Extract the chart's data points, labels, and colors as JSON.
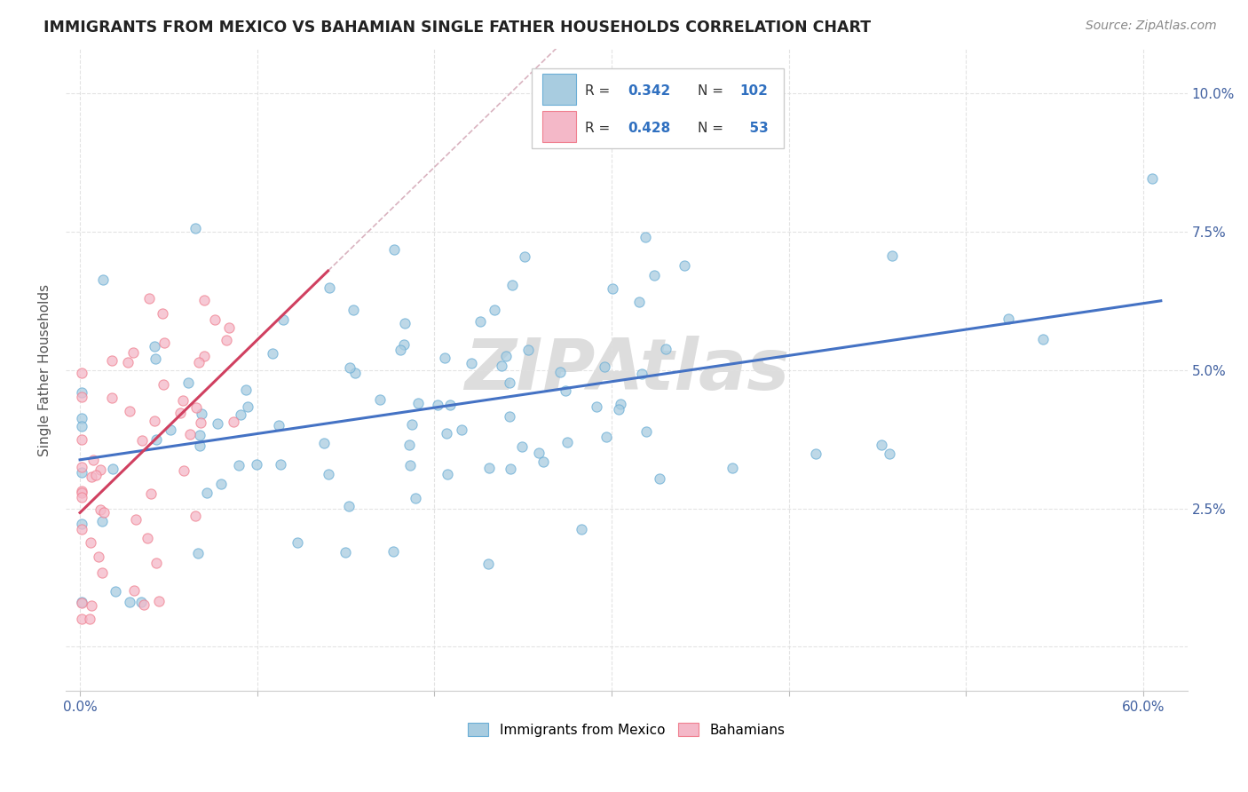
{
  "title": "IMMIGRANTS FROM MEXICO VS BAHAMIAN SINGLE FATHER HOUSEHOLDS CORRELATION CHART",
  "source": "Source: ZipAtlas.com",
  "ylabel": "Single Father Households",
  "legend_r_blue": "0.342",
  "legend_n_blue": "102",
  "legend_r_pink": "0.428",
  "legend_n_pink": "53",
  "blue_color": "#a8cce0",
  "pink_color": "#f4b8c8",
  "blue_edge_color": "#6baed6",
  "pink_edge_color": "#f08090",
  "trend_blue_color": "#4472c4",
  "trend_pink_color": "#d04060",
  "diag_color": "#d0a0b0",
  "watermark": "ZIPAtlas",
  "watermark_color": "#dddddd",
  "legend_text_color": "#3070c0",
  "legend_pink_text_color": "#d04060",
  "title_color": "#222222",
  "source_color": "#888888",
  "ylabel_color": "#555555",
  "grid_color": "#e0e0e0",
  "xtick_color": "#4060a0",
  "ytick_color": "#4060a0"
}
